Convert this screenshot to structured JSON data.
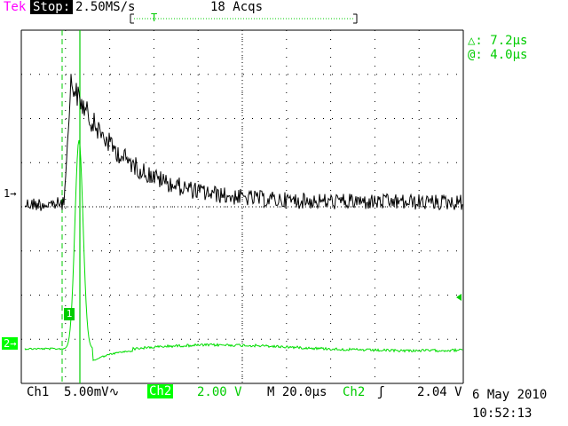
{
  "header": {
    "brand": "Tek",
    "run_state": "Stop:",
    "sample_rate": "2.50MS/s",
    "acquisitions": "18 Acqs"
  },
  "cursor_readout": {
    "delta": "△: 7.2µs",
    "at": "@: 4.0µs"
  },
  "markers": {
    "ch1": "1→",
    "ch2": "2→",
    "trigger": "T",
    "waveform_box": "1"
  },
  "footer": {
    "ch1_label": "Ch1",
    "ch1_scale": "5.00mV∿",
    "ch2_label": "Ch2",
    "ch2_scale": "2.00 V",
    "timebase": "M 20.0µs",
    "trigger_source": "Ch2",
    "trigger_slope": "ʃ",
    "trigger_level": "2.04 V",
    "date": "6 May 2010",
    "time": "10:52:13"
  },
  "colors": {
    "ch1_trace": "#000000",
    "ch2_trace": "#00dd00",
    "accent": "#00cc00",
    "brand": "#ff00ff"
  }
}
